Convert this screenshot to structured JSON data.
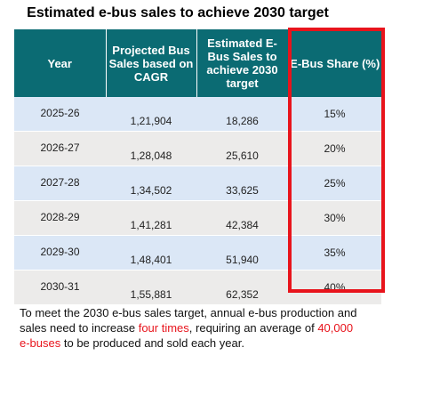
{
  "title": "Estimated e-bus sales to achieve 2030 target",
  "table": {
    "headers": [
      "Year",
      "Projected Bus Sales based on CAGR",
      "Estimated E-Bus Sales to achieve 2030 target",
      "E-Bus Share (%)"
    ],
    "rows": [
      {
        "year": "2025-26",
        "projected": "1,21,904",
        "estimated": "18,286",
        "share": "15%"
      },
      {
        "year": "2026-27",
        "projected": "1,28,048",
        "estimated": "25,610",
        "share": "20%"
      },
      {
        "year": "2027-28",
        "projected": "1,34,502",
        "estimated": "33,625",
        "share": "25%"
      },
      {
        "year": "2028-29",
        "projected": "1,41,281",
        "estimated": "42,384",
        "share": "30%"
      },
      {
        "year": "2029-30",
        "projected": "1,48,401",
        "estimated": "51,940",
        "share": "35%"
      },
      {
        "year": "2030-31",
        "projected": "1,55,881",
        "estimated": "62,352",
        "share": "40%"
      }
    ]
  },
  "note": {
    "part1": "To meet the 2030 e-bus sales target, annual e-bus production and sales need to increase ",
    "highlight1": "four times",
    "part2": ", requiring an average of ",
    "highlight2": "40,000 e-buses",
    "part3": " to be produced and sold each year."
  },
  "colors": {
    "header_bg": "#0b6b73",
    "row_blue": "#dbe7f6",
    "row_grey": "#ecebea",
    "highlight_red": "#e8141c"
  }
}
